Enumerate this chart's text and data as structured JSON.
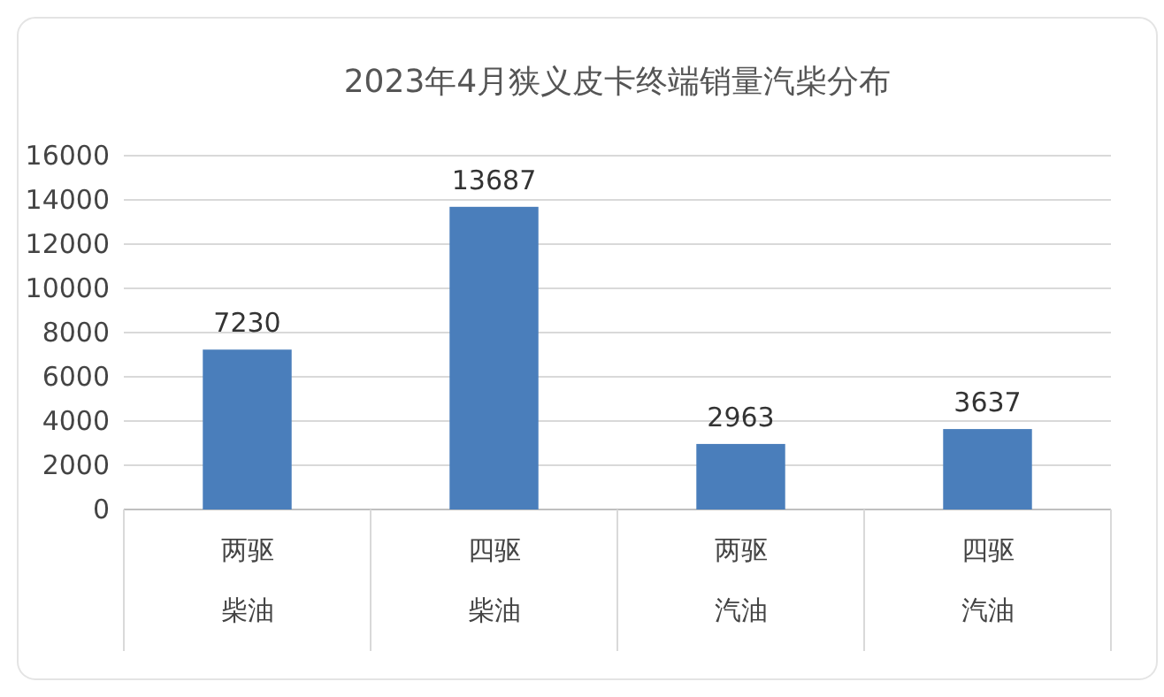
{
  "chart_data": {
    "type": "bar",
    "title": "2023年4月狭义皮卡终端销量汽柴分布",
    "categories": [
      "两驱柴油",
      "四驱柴油",
      "两驱汽油",
      "四驱汽油"
    ],
    "values": [
      7230,
      13687,
      2963,
      3637
    ],
    "color": "#4a7ebb",
    "ylim": [
      0,
      16000
    ],
    "yticks": [
      0,
      2000,
      4000,
      6000,
      8000,
      10000,
      12000,
      14000,
      16000
    ],
    "grid": "y",
    "data_labels": true
  }
}
